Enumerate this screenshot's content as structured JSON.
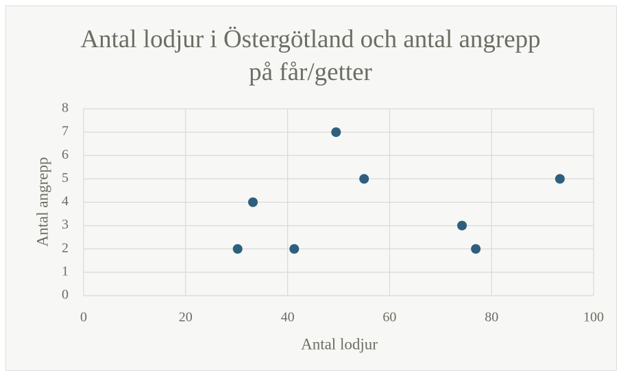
{
  "chart_data": {
    "type": "scatter",
    "title": "Antal lodjur i Östergötland och antal angrepp på får/getter",
    "x_label": "Antal lodjur",
    "y_label": "Antal angrepp",
    "series": [
      {
        "name": "Antal angrepp",
        "color": "#2e5f7e",
        "x": [
          30.2,
          33.2,
          41.3,
          49.5,
          55.0,
          74.2,
          76.9,
          93.4
        ],
        "values": [
          2,
          4,
          2,
          7,
          5,
          3,
          2,
          5
        ]
      }
    ],
    "xlim": [
      0,
      100
    ],
    "xticks": [
      0,
      20,
      40,
      60,
      80,
      100
    ],
    "ylim": [
      0,
      8
    ],
    "yticks": [
      0,
      1,
      2,
      3,
      4,
      5,
      6,
      7,
      8
    ],
    "grid": true
  }
}
